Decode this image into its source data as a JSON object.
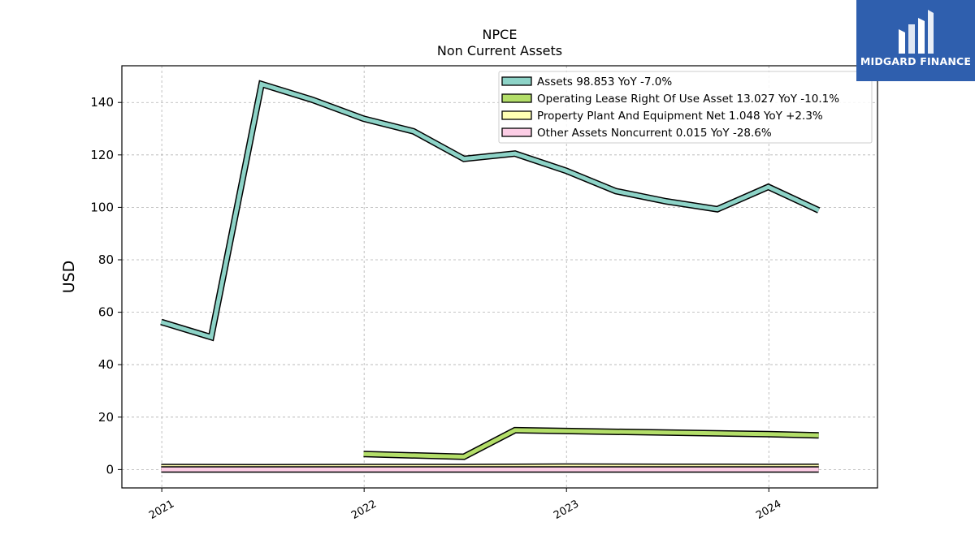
{
  "chart_data": {
    "type": "line",
    "title": "NPCE",
    "subtitle": "Non Current  Assets",
    "ylabel": "USD",
    "ylim": [
      -7,
      154
    ],
    "yticks": [
      0,
      20,
      40,
      60,
      80,
      100,
      120,
      140
    ],
    "xlim": [
      "2020-10-21",
      "2024-07-15"
    ],
    "xticks": [
      {
        "label": "2021",
        "date": "2021-01-01"
      },
      {
        "label": "2022",
        "date": "2022-01-01"
      },
      {
        "label": "2023",
        "date": "2023-01-01"
      },
      {
        "label": "2024",
        "date": "2024-01-01"
      }
    ],
    "grid": true,
    "legend_position": "top-right",
    "series": [
      {
        "name": "Assets",
        "legend": "Assets  98.853 YoY -7.0%",
        "color": "#8dd3c7",
        "x": [
          "2020-12-31",
          "2021-03-31",
          "2021-06-30",
          "2021-09-30",
          "2021-12-31",
          "2022-03-31",
          "2022-06-30",
          "2022-09-30",
          "2022-12-31",
          "2023-03-31",
          "2023-06-30",
          "2023-09-30",
          "2023-12-31",
          "2024-03-31"
        ],
        "y": [
          56.3,
          50.5,
          147,
          141,
          133.8,
          129,
          118.5,
          120.5,
          114,
          106.2,
          102.3,
          99.3,
          107.8,
          98.853
        ]
      },
      {
        "name": "Operating Lease Right Of Use Asset",
        "legend": "Operating Lease Right Of Use Asset  13.027 YoY -10.1%",
        "color": "#b3de69",
        "x": [
          "2021-12-31",
          "2022-06-30",
          "2022-09-30",
          "2022-12-31",
          "2023-12-31",
          "2024-03-31"
        ],
        "y": [
          5.9,
          4.9,
          15,
          14.7,
          13.5,
          13.027
        ]
      },
      {
        "name": "Property Plant And Equipment Net",
        "legend": "Property Plant And Equipment Net  1.048 YoY +2.3%",
        "color": "#ffffb3",
        "x": [
          "2020-12-31",
          "2021-06-30",
          "2021-12-31",
          "2022-06-30",
          "2022-12-31",
          "2023-06-30",
          "2023-12-31",
          "2024-03-31"
        ],
        "y": [
          1.0,
          0.9,
          1.0,
          1.0,
          1.1,
          1.05,
          1.02,
          1.048
        ]
      },
      {
        "name": "Other Assets Noncurrent",
        "legend": "Other Assets Noncurrent  0.015 YoY -28.6%",
        "color": "#fccde5",
        "x": [
          "2020-12-31",
          "2024-03-31"
        ],
        "y": [
          0.02,
          0.015
        ]
      }
    ]
  },
  "logo": {
    "text": "MIDGARD FINANCE",
    "background": "#2f5fae"
  }
}
